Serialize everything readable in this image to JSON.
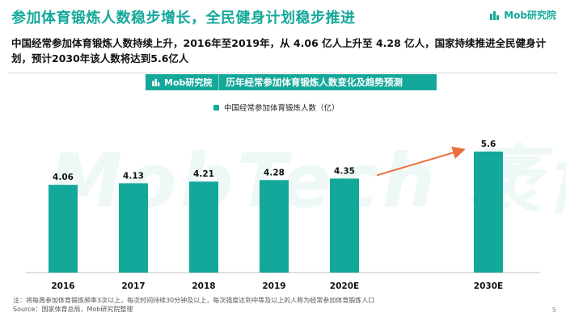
{
  "header": {
    "title": "参加体育锻炼人数稳步增长，全民健身计划稳步推进",
    "logo_text": "Mob研究院"
  },
  "summary": "中国经常参加体育锻炼人数持续上升，2016年至2019年，从 4.06 亿人上升至 4.28 亿人，国家持续推进全民健身计划，预计2030年该人数将达到5.6亿人",
  "banner": {
    "logo_text": "Mob研究院",
    "title": "历年经常参加体育锻炼人数变化及趋势预测"
  },
  "watermark": "MobTech 袤博",
  "chart_data": {
    "type": "bar",
    "categories": [
      "2016",
      "2017",
      "2018",
      "2019",
      "2020E",
      "2030E"
    ],
    "series": [
      {
        "name": "中国经常参加体育锻炼人数（亿）",
        "values": [
          4.06,
          4.13,
          4.21,
          4.28,
          4.35,
          5.6
        ],
        "color": "#14a89a"
      }
    ],
    "value_labels": [
      "4.06",
      "4.13",
      "4.21",
      "4.28",
      "4.35",
      "5.6"
    ],
    "legend_position": "top",
    "trend_arrow": {
      "from": "2020E",
      "to": "2030E",
      "color": "#e8703a"
    },
    "grid": false
  },
  "footer": {
    "note": "注：将每周参加体育锻炼频率3次以上，每次时间持续30分钟及以上，每次强度达到中等及以上的人称为经常参加体育锻炼人口",
    "source": "Source：国家体育总局，Mob研究院整理",
    "page_number": "5"
  }
}
